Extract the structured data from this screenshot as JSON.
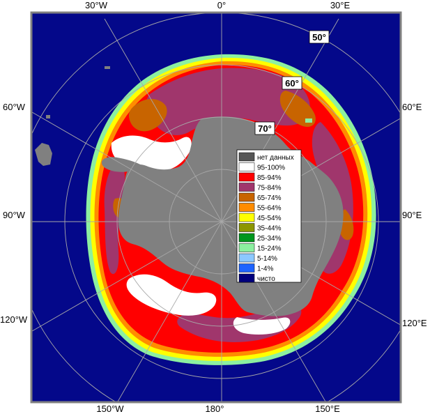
{
  "map": {
    "lon_labels_top": [
      "30°W",
      "0°",
      "30°E"
    ],
    "lon_labels_bottom": [
      "150°W",
      "180°",
      "150°E"
    ],
    "lon_labels_left": [
      "60°W",
      "90°W",
      "120°W"
    ],
    "lon_labels_right": [
      "60°E",
      "90°E",
      "120°E"
    ],
    "lat_labels": [
      "50°",
      "60°",
      "70°"
    ]
  },
  "legend": {
    "items": [
      {
        "label": "нет данных",
        "color": "#555555"
      },
      {
        "label": "95-100%",
        "color": "#ffffff"
      },
      {
        "label": "85-94%",
        "color": "#ff0000"
      },
      {
        "label": "75-84%",
        "color": "#a0366c"
      },
      {
        "label": "65-74%",
        "color": "#c86400"
      },
      {
        "label": "55-64%",
        "color": "#ff8c00"
      },
      {
        "label": "45-54%",
        "color": "#ffff00"
      },
      {
        "label": "35-44%",
        "color": "#8c9600"
      },
      {
        "label": "25-34%",
        "color": "#00961e"
      },
      {
        "label": "15-24%",
        "color": "#8cf0a0"
      },
      {
        "label": "5-14%",
        "color": "#8cc8ff"
      },
      {
        "label": "1-4%",
        "color": "#1e64ff"
      },
      {
        "label": "чисто",
        "color": "#00007d"
      }
    ]
  },
  "colors": {
    "ocean": "#04088a",
    "land": "#808080",
    "frame": "#808080",
    "grid": "#a8a8a8"
  }
}
